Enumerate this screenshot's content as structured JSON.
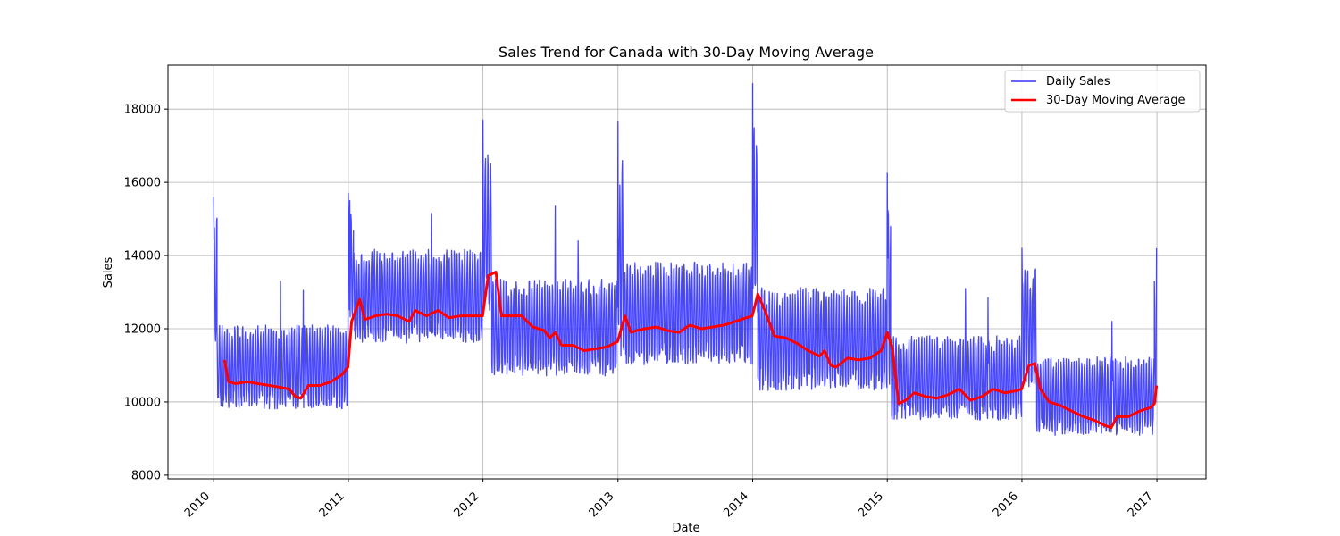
{
  "chart_data": {
    "type": "line",
    "title": "Sales Trend for Canada with 30-Day Moving Average",
    "xlabel": "Date",
    "ylabel": "Sales",
    "xlim": [
      "2009-08-30",
      "2017-05-14"
    ],
    "ylim": [
      7900,
      19200
    ],
    "x_ticks": [
      "2010",
      "2011",
      "2012",
      "2013",
      "2014",
      "2015",
      "2016",
      "2017"
    ],
    "y_ticks": [
      8000,
      10000,
      12000,
      14000,
      16000,
      18000
    ],
    "grid": true,
    "legend_position": "top-right",
    "daily_sales_bands": [
      {
        "start": "2010-01-01",
        "end": "2010-01-10",
        "low": 11500,
        "high": 15600
      },
      {
        "start": "2010-01-10",
        "end": "2010-12-31",
        "low": 9700,
        "high": 12500
      },
      {
        "start": "2011-01-01",
        "end": "2011-01-15",
        "low": 12000,
        "high": 15700
      },
      {
        "start": "2011-01-15",
        "end": "2011-12-31",
        "low": 11500,
        "high": 14600
      },
      {
        "start": "2012-01-01",
        "end": "2012-01-25",
        "low": 12200,
        "high": 17700
      },
      {
        "start": "2012-01-25",
        "end": "2012-12-31",
        "low": 10600,
        "high": 13800
      },
      {
        "start": "2013-01-01",
        "end": "2013-01-15",
        "low": 11000,
        "high": 17650
      },
      {
        "start": "2013-01-15",
        "end": "2013-12-31",
        "low": 10900,
        "high": 14300
      },
      {
        "start": "2014-01-01",
        "end": "2014-01-15",
        "low": 12000,
        "high": 18700
      },
      {
        "start": "2014-01-15",
        "end": "2014-12-31",
        "low": 10200,
        "high": 13600
      },
      {
        "start": "2015-01-01",
        "end": "2015-01-10",
        "low": 10000,
        "high": 16250
      },
      {
        "start": "2015-01-10",
        "end": "2015-12-31",
        "low": 9400,
        "high": 12200
      },
      {
        "start": "2016-01-01",
        "end": "2016-02-10",
        "low": 10200,
        "high": 14200
      },
      {
        "start": "2016-02-10",
        "end": "2016-12-25",
        "low": 9000,
        "high": 11600
      },
      {
        "start": "2016-12-25",
        "end": "2016-12-31",
        "low": 9800,
        "high": 14200
      }
    ],
    "daily_sales_spikes": [
      {
        "date": "2010-01-01",
        "value": 15600
      },
      {
        "date": "2010-07-01",
        "value": 13300
      },
      {
        "date": "2010-09-01",
        "value": 13050
      },
      {
        "date": "2011-01-01",
        "value": 15700
      },
      {
        "date": "2011-01-05",
        "value": 15500
      },
      {
        "date": "2011-08-15",
        "value": 15150
      },
      {
        "date": "2012-01-01",
        "value": 17700
      },
      {
        "date": "2012-01-08",
        "value": 16650
      },
      {
        "date": "2012-07-15",
        "value": 15350
      },
      {
        "date": "2012-09-15",
        "value": 14400
      },
      {
        "date": "2013-01-01",
        "value": 17650
      },
      {
        "date": "2013-01-05",
        "value": 14500
      },
      {
        "date": "2014-01-01",
        "value": 18700
      },
      {
        "date": "2014-01-10",
        "value": 14950
      },
      {
        "date": "2015-01-01",
        "value": 16250
      },
      {
        "date": "2015-08-01",
        "value": 13100
      },
      {
        "date": "2015-10-01",
        "value": 12850
      },
      {
        "date": "2016-01-01",
        "value": 14200
      },
      {
        "date": "2016-01-08",
        "value": 13100
      },
      {
        "date": "2016-09-01",
        "value": 12200
      },
      {
        "date": "2016-12-31",
        "value": 14200
      }
    ],
    "series": [
      {
        "name": "Daily Sales",
        "color": "#3333ff"
      },
      {
        "name": "30-Day Moving Average",
        "color": "#ff0000",
        "x": [
          "2010-01-30",
          "2010-02-10",
          "2010-03-01",
          "2010-04-01",
          "2010-05-01",
          "2010-06-01",
          "2010-07-01",
          "2010-07-25",
          "2010-08-10",
          "2010-08-25",
          "2010-09-15",
          "2010-10-15",
          "2010-11-15",
          "2010-12-15",
          "2010-12-31",
          "2011-01-10",
          "2011-02-01",
          "2011-02-15",
          "2011-03-15",
          "2011-04-15",
          "2011-05-15",
          "2011-06-15",
          "2011-07-01",
          "2011-08-01",
          "2011-09-01",
          "2011-10-01",
          "2011-11-01",
          "2011-12-01",
          "2011-12-31",
          "2012-01-15",
          "2012-02-05",
          "2012-02-20",
          "2012-03-15",
          "2012-04-15",
          "2012-05-15",
          "2012-06-15",
          "2012-06-30",
          "2012-07-15",
          "2012-08-01",
          "2012-09-01",
          "2012-10-01",
          "2012-11-01",
          "2012-12-01",
          "2012-12-31",
          "2013-01-20",
          "2013-02-05",
          "2013-02-20",
          "2013-03-15",
          "2013-04-15",
          "2013-05-15",
          "2013-06-15",
          "2013-07-15",
          "2013-08-15",
          "2013-09-15",
          "2013-10-15",
          "2013-11-15",
          "2013-12-15",
          "2013-12-31",
          "2014-01-15",
          "2014-02-05",
          "2014-03-01",
          "2014-04-01",
          "2014-05-01",
          "2014-06-01",
          "2014-07-01",
          "2014-07-15",
          "2014-08-01",
          "2014-08-15",
          "2014-09-15",
          "2014-10-15",
          "2014-11-15",
          "2014-12-15",
          "2015-01-01",
          "2015-01-15",
          "2015-02-01",
          "2015-02-20",
          "2015-03-15",
          "2015-04-15",
          "2015-05-15",
          "2015-06-15",
          "2015-07-15",
          "2015-08-15",
          "2015-09-15",
          "2015-10-15",
          "2015-11-15",
          "2015-12-15",
          "2015-12-31",
          "2016-01-20",
          "2016-02-05",
          "2016-02-20",
          "2016-03-15",
          "2016-04-15",
          "2016-05-15",
          "2016-06-15",
          "2016-07-15",
          "2016-08-15",
          "2016-08-30",
          "2016-09-15",
          "2016-10-15",
          "2016-11-15",
          "2016-12-15",
          "2016-12-25",
          "2016-12-31"
        ],
        "values": [
          11150,
          10550,
          10500,
          10550,
          10500,
          10450,
          10400,
          10350,
          10150,
          10100,
          10450,
          10450,
          10550,
          10750,
          10950,
          12200,
          12800,
          12250,
          12350,
          12400,
          12350,
          12200,
          12500,
          12350,
          12500,
          12300,
          12350,
          12350,
          12350,
          13450,
          13550,
          12350,
          12350,
          12350,
          12050,
          11950,
          11750,
          11900,
          11550,
          11550,
          11400,
          11450,
          11500,
          11650,
          12350,
          11900,
          11950,
          12000,
          12050,
          11950,
          11900,
          12100,
          12000,
          12050,
          12100,
          12200,
          12300,
          12350,
          12950,
          12450,
          11800,
          11750,
          11600,
          11400,
          11250,
          11400,
          11000,
          10950,
          11200,
          11150,
          11200,
          11400,
          11900,
          11450,
          9950,
          10050,
          10250,
          10150,
          10100,
          10200,
          10350,
          10050,
          10150,
          10350,
          10250,
          10300,
          10350,
          11000,
          11050,
          10350,
          10000,
          9900,
          9750,
          9600,
          9500,
          9350,
          9300,
          9600,
          9600,
          9750,
          9850,
          9950,
          10450
        ]
      }
    ]
  }
}
